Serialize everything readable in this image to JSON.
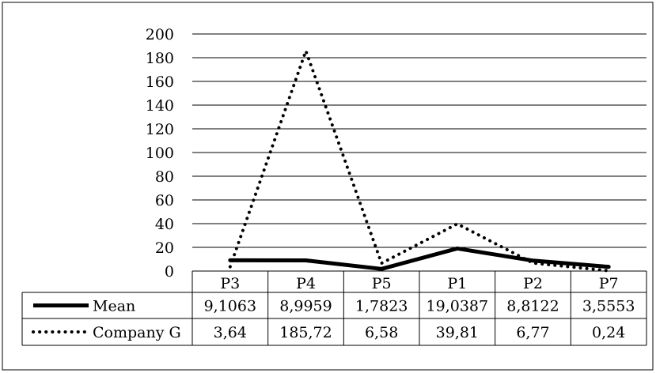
{
  "chart_data": {
    "type": "line",
    "categories": [
      "P3",
      "P4",
      "P5",
      "P1",
      "P2",
      "P7"
    ],
    "ylim": [
      0,
      200
    ],
    "yticks": [
      0,
      20,
      40,
      60,
      80,
      100,
      120,
      140,
      160,
      180,
      200
    ],
    "grid": true,
    "legend": "data-table-below",
    "series": [
      {
        "name": "Mean",
        "style": "solid",
        "color": "#000000",
        "values": [
          9.1063,
          8.9959,
          1.7823,
          19.0387,
          8.8122,
          3.5553
        ],
        "labels": [
          "9,1063",
          "8,9959",
          "1,7823",
          "19,0387",
          "8,8122",
          "3,5553"
        ]
      },
      {
        "name": "Company G",
        "style": "dotted",
        "color": "#000000",
        "values": [
          3.64,
          185.72,
          6.58,
          39.81,
          6.77,
          0.24
        ],
        "labels": [
          "3,64",
          "185,72",
          "6,58",
          "39,81",
          "6,77",
          "0,24"
        ]
      }
    ]
  }
}
